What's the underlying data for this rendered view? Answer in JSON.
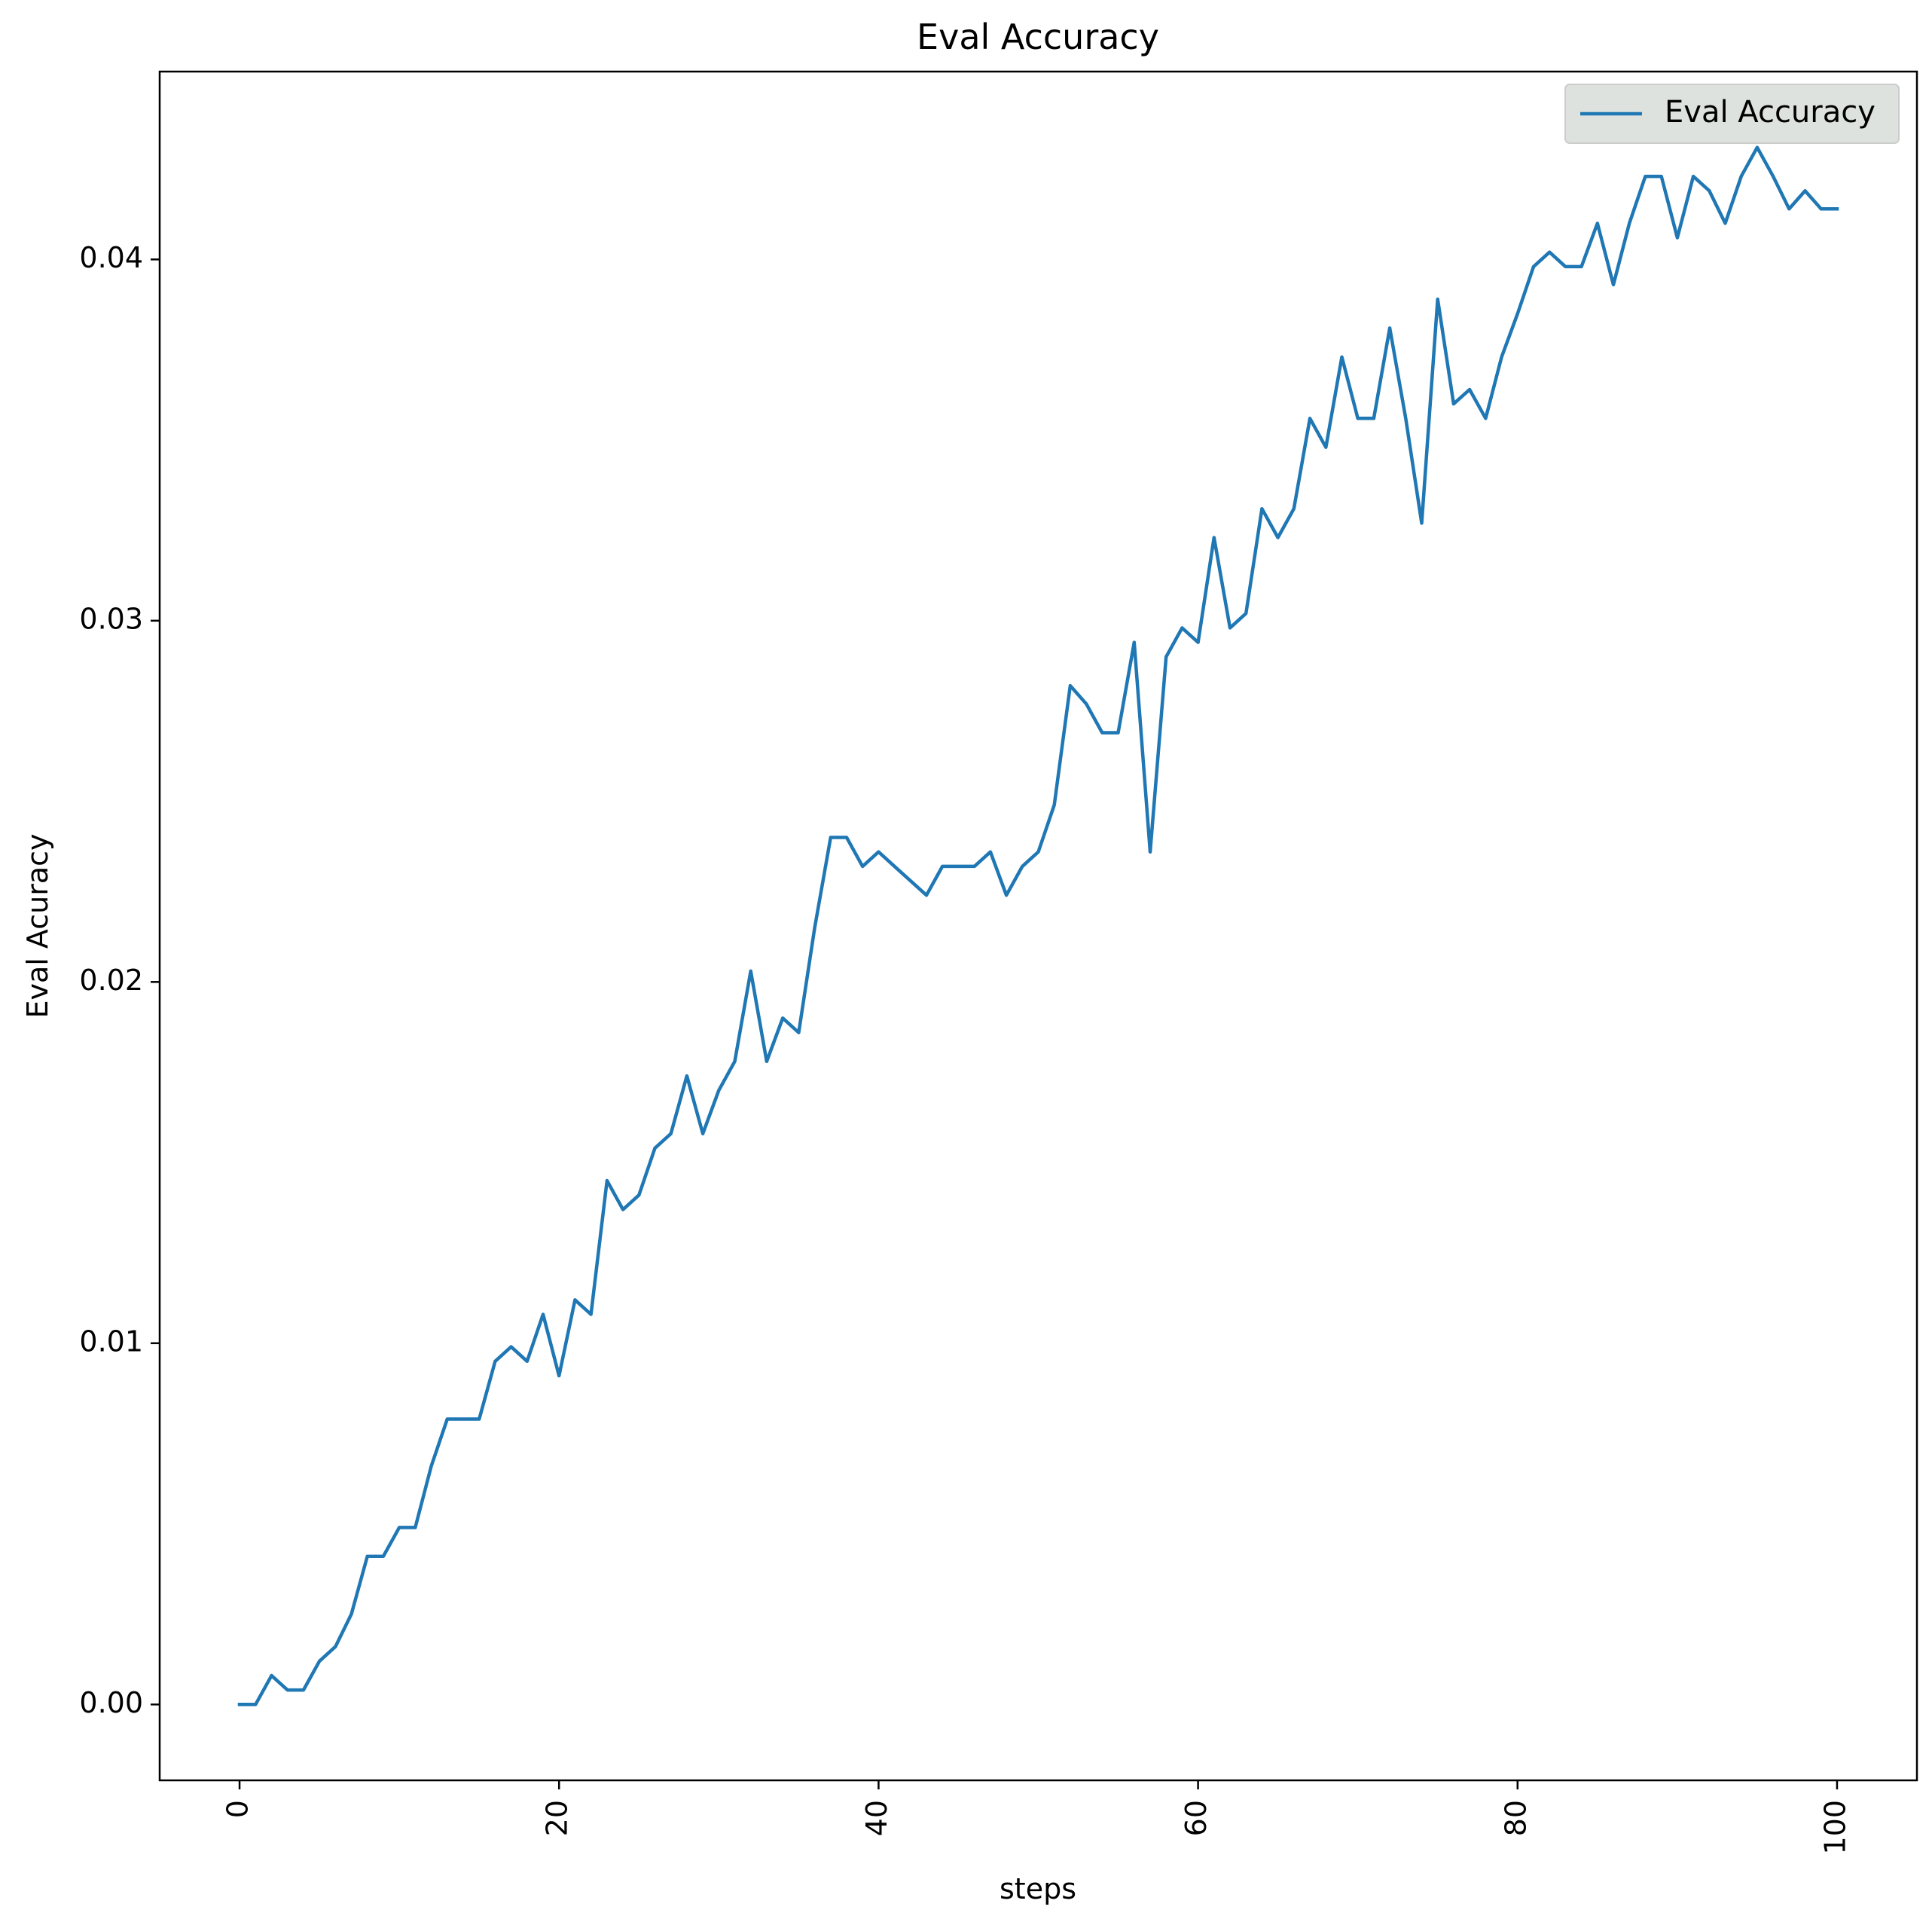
{
  "chart_data": {
    "type": "line",
    "title": "Eval Accuracy",
    "xlabel": "steps",
    "ylabel": "Eval Acuracy",
    "xlim": [
      -5,
      105
    ],
    "ylim": [
      -0.0021,
      0.0452
    ],
    "xticks": [
      0,
      20,
      40,
      60,
      80,
      100
    ],
    "xtick_labels": [
      "0",
      "20",
      "40",
      "60",
      "80",
      "100"
    ],
    "xtick_rotation": 90,
    "yticks": [
      0.0,
      0.01,
      0.02,
      0.03,
      0.04
    ],
    "ytick_labels": [
      "0.00",
      "0.01",
      "0.02",
      "0.03",
      "0.04"
    ],
    "grid": false,
    "legend": {
      "position": "top-right",
      "entries": [
        "Eval Accuracy"
      ]
    },
    "series": [
      {
        "name": "Eval Accuracy",
        "color": "#1f77b4",
        "x": [
          0,
          1,
          2,
          3,
          4,
          5,
          6,
          7,
          8,
          9,
          10,
          11,
          12,
          13,
          14,
          15,
          16,
          17,
          18,
          19,
          20,
          21,
          22,
          23,
          24,
          25,
          26,
          27,
          28,
          29,
          30,
          31,
          32,
          33,
          34,
          35,
          36,
          37,
          38,
          39,
          40,
          41,
          42,
          43,
          44,
          45,
          46,
          47,
          48,
          49,
          50,
          51,
          52,
          53,
          54,
          55,
          56,
          57,
          58,
          59,
          60,
          61,
          62,
          63,
          64,
          65,
          66,
          67,
          68,
          69,
          70,
          71,
          72,
          73,
          74,
          75,
          76,
          77,
          78,
          79,
          80,
          81,
          82,
          83,
          84,
          85,
          86,
          87,
          88,
          89,
          90,
          91,
          92,
          93,
          94,
          95,
          96,
          97,
          98,
          99,
          100
        ],
        "y": [
          0.0,
          0.0,
          0.0008,
          0.0004,
          0.0004,
          0.0012,
          0.0016,
          0.0025,
          0.0041,
          0.0041,
          0.0049,
          0.0049,
          0.0066,
          0.0079,
          0.0079,
          0.0079,
          0.0095,
          0.0099,
          0.0095,
          0.0108,
          0.0091,
          0.0112,
          0.0108,
          0.0145,
          0.0137,
          0.0141,
          0.0154,
          0.0158,
          0.0174,
          0.0158,
          0.017,
          0.0178,
          0.0203,
          0.0178,
          0.019,
          0.0186,
          0.0215,
          0.024,
          0.024,
          0.0232,
          0.0236,
          0.0232,
          0.0228,
          0.0224,
          0.0232,
          0.0232,
          0.0232,
          0.0236,
          0.0224,
          0.0232,
          0.0236,
          0.0249,
          0.0282,
          0.0277,
          0.0269,
          0.0269,
          0.0294,
          0.0236,
          0.029,
          0.0298,
          0.0294,
          0.0323,
          0.0298,
          0.0302,
          0.0331,
          0.0323,
          0.0331,
          0.0356,
          0.0348,
          0.0373,
          0.0356,
          0.0356,
          0.0381,
          0.0356,
          0.0327,
          0.0389,
          0.036,
          0.0364,
          0.0356,
          0.0373,
          0.0385,
          0.0398,
          0.0402,
          0.0398,
          0.0398,
          0.041,
          0.0393,
          0.041,
          0.0423,
          0.0423,
          0.0406,
          0.0423,
          0.0419,
          0.041,
          0.0423,
          0.0431,
          0.0423,
          0.0414,
          0.0419,
          0.0414,
          0.0414
        ]
      }
    ]
  }
}
